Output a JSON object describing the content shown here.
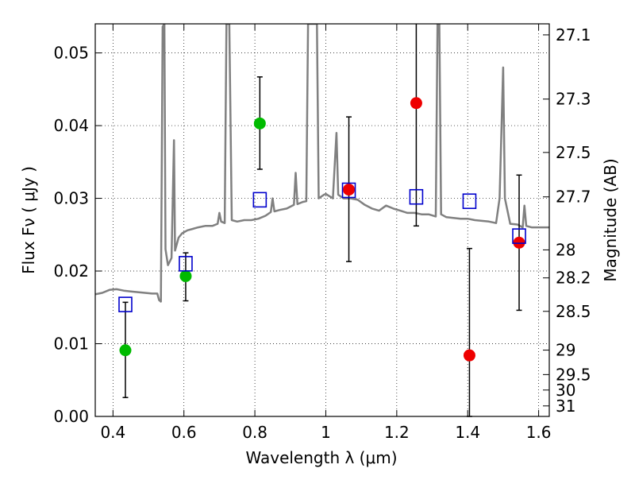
{
  "chart_data": {
    "type": "scatter",
    "xlabel": "Wavelength  λ (μm)",
    "ylabel": "Flux  Fν  ( μJy )",
    "ylabel_right": "Magnitude (AB)",
    "xlim": [
      0.35,
      1.63
    ],
    "ylim": [
      0.0,
      0.054
    ],
    "grid": true,
    "x_ticks": [
      0.4,
      0.6,
      0.8,
      1.0,
      1.2,
      1.4,
      1.6
    ],
    "x_tick_labels": [
      "0.4",
      "0.6",
      "0.8",
      "1",
      "1.2",
      "1.4",
      "1.6"
    ],
    "y_ticks": [
      0.0,
      0.01,
      0.02,
      0.03,
      0.04,
      0.05
    ],
    "y_tick_labels": [
      "0.00",
      "0.01",
      "0.02",
      "0.03",
      "0.04",
      "0.05"
    ],
    "right_axis_ticks": [
      "27.1",
      "27.3",
      "27.5",
      "27.7",
      "28",
      "28.2",
      "28.5",
      "29",
      "29.5",
      "30",
      "31"
    ],
    "colors": {
      "model": "#808080",
      "green": "#00bb00",
      "red": "#ee0000",
      "squares": "#0000cc",
      "errorbar": "#000000"
    },
    "series": [
      {
        "marker": "circle-green",
        "points": [
          {
            "x": 0.435,
            "y": 0.0091,
            "err": [
              0.0026,
              0.0157
            ]
          },
          {
            "x": 0.605,
            "y": 0.0193,
            "err": [
              0.0159,
              0.0225
            ]
          },
          {
            "x": 0.814,
            "y": 0.0403,
            "err": [
              0.034,
              0.0467
            ]
          }
        ]
      },
      {
        "marker": "circle-red",
        "points": [
          {
            "x": 1.065,
            "y": 0.0312,
            "err": [
              0.0213,
              0.0412
            ]
          },
          {
            "x": 1.255,
            "y": 0.0431,
            "err": [
              0.0262,
              0.06
            ]
          },
          {
            "x": 1.405,
            "y": 0.0084,
            "err": [
              0.0,
              0.0231
            ]
          },
          {
            "x": 1.545,
            "y": 0.0239,
            "err": [
              0.0146,
              0.0332
            ]
          }
        ]
      },
      {
        "marker": "square-blue",
        "points": [
          {
            "x": 0.435,
            "y": 0.0154
          },
          {
            "x": 0.605,
            "y": 0.021
          },
          {
            "x": 0.814,
            "y": 0.0298
          },
          {
            "x": 1.065,
            "y": 0.0311
          },
          {
            "x": 1.255,
            "y": 0.0302
          },
          {
            "x": 1.405,
            "y": 0.0296
          },
          {
            "x": 1.545,
            "y": 0.0248
          }
        ]
      }
    ],
    "model_spectrum": [
      [
        0.35,
        0.0168
      ],
      [
        0.37,
        0.017
      ],
      [
        0.39,
        0.0174
      ],
      [
        0.41,
        0.0175
      ],
      [
        0.43,
        0.0173
      ],
      [
        0.45,
        0.0172
      ],
      [
        0.47,
        0.0171
      ],
      [
        0.49,
        0.017
      ],
      [
        0.51,
        0.0169
      ],
      [
        0.525,
        0.0169
      ],
      [
        0.53,
        0.016
      ],
      [
        0.535,
        0.0158
      ],
      [
        0.54,
        0.0536
      ],
      [
        0.545,
        0.054
      ],
      [
        0.548,
        0.023
      ],
      [
        0.555,
        0.0208
      ],
      [
        0.565,
        0.0218
      ],
      [
        0.572,
        0.038
      ],
      [
        0.575,
        0.0228
      ],
      [
        0.585,
        0.0246
      ],
      [
        0.595,
        0.0252
      ],
      [
        0.61,
        0.0256
      ],
      [
        0.625,
        0.0258
      ],
      [
        0.64,
        0.026
      ],
      [
        0.66,
        0.0262
      ],
      [
        0.68,
        0.0262
      ],
      [
        0.695,
        0.0265
      ],
      [
        0.7,
        0.028
      ],
      [
        0.705,
        0.0268
      ],
      [
        0.715,
        0.0266
      ],
      [
        0.72,
        0.054
      ],
      [
        0.728,
        0.054
      ],
      [
        0.735,
        0.027
      ],
      [
        0.75,
        0.0268
      ],
      [
        0.77,
        0.027
      ],
      [
        0.79,
        0.027
      ],
      [
        0.81,
        0.0272
      ],
      [
        0.83,
        0.0276
      ],
      [
        0.845,
        0.0281
      ],
      [
        0.85,
        0.03
      ],
      [
        0.855,
        0.0282
      ],
      [
        0.87,
        0.0284
      ],
      [
        0.89,
        0.0286
      ],
      [
        0.91,
        0.0291
      ],
      [
        0.915,
        0.0335
      ],
      [
        0.92,
        0.0292
      ],
      [
        0.935,
        0.0295
      ],
      [
        0.945,
        0.0296
      ],
      [
        0.95,
        0.054
      ],
      [
        0.965,
        0.054
      ],
      [
        0.97,
        0.054
      ],
      [
        0.975,
        0.054
      ],
      [
        0.98,
        0.03
      ],
      [
        0.995,
        0.0305
      ],
      [
        1.0,
        0.0306
      ],
      [
        1.02,
        0.03
      ],
      [
        1.03,
        0.039
      ],
      [
        1.035,
        0.0305
      ],
      [
        1.05,
        0.03
      ],
      [
        1.07,
        0.03
      ],
      [
        1.09,
        0.0298
      ],
      [
        1.11,
        0.0291
      ],
      [
        1.13,
        0.0286
      ],
      [
        1.15,
        0.0283
      ],
      [
        1.17,
        0.029
      ],
      [
        1.19,
        0.0286
      ],
      [
        1.21,
        0.0283
      ],
      [
        1.23,
        0.028
      ],
      [
        1.25,
        0.028
      ],
      [
        1.27,
        0.0278
      ],
      [
        1.29,
        0.0278
      ],
      [
        1.31,
        0.0275
      ],
      [
        1.315,
        0.054
      ],
      [
        1.32,
        0.054
      ],
      [
        1.325,
        0.0278
      ],
      [
        1.34,
        0.0274
      ],
      [
        1.36,
        0.0273
      ],
      [
        1.38,
        0.0272
      ],
      [
        1.4,
        0.0272
      ],
      [
        1.42,
        0.027
      ],
      [
        1.44,
        0.0269
      ],
      [
        1.46,
        0.0268
      ],
      [
        1.48,
        0.0266
      ],
      [
        1.49,
        0.03
      ],
      [
        1.5,
        0.048
      ],
      [
        1.505,
        0.03
      ],
      [
        1.52,
        0.0265
      ],
      [
        1.54,
        0.0264
      ],
      [
        1.555,
        0.026
      ],
      [
        1.56,
        0.029
      ],
      [
        1.565,
        0.0262
      ],
      [
        1.58,
        0.026
      ],
      [
        1.6,
        0.026
      ],
      [
        1.63,
        0.026
      ]
    ]
  }
}
